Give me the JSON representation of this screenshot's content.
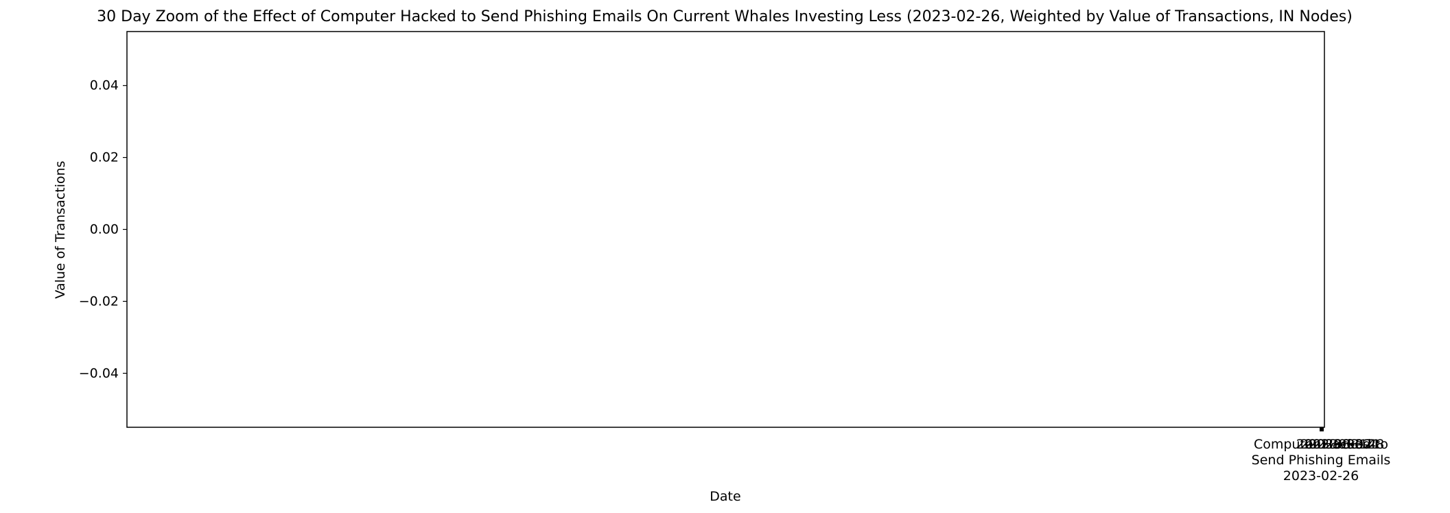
{
  "chart_data": {
    "type": "line",
    "title": "30 Day Zoom of the Effect of Computer Hacked to Send Phishing Emails On Current Whales Investing Less (2023-02-26, Weighted by Value of Transactions, IN Nodes)",
    "xlabel": "Date",
    "ylabel": "Value of Transactions",
    "ylim": [
      -0.055,
      0.055
    ],
    "yticks": [
      0.04,
      0.02,
      0.0,
      -0.02,
      -0.04
    ],
    "ytick_labels": [
      "0.04",
      "0.02",
      "0.00",
      "−0.02",
      "−0.04"
    ],
    "grid": false,
    "series": [],
    "overlapping_date_labels": [
      "2023-03-07",
      "2023-03-14",
      "2023-03-21",
      "2023-03-28"
    ],
    "event": {
      "label_lines": [
        "Computer Hacked to",
        "Send Phishing Emails",
        "2023-02-26"
      ],
      "date": "2023-02-26"
    }
  }
}
